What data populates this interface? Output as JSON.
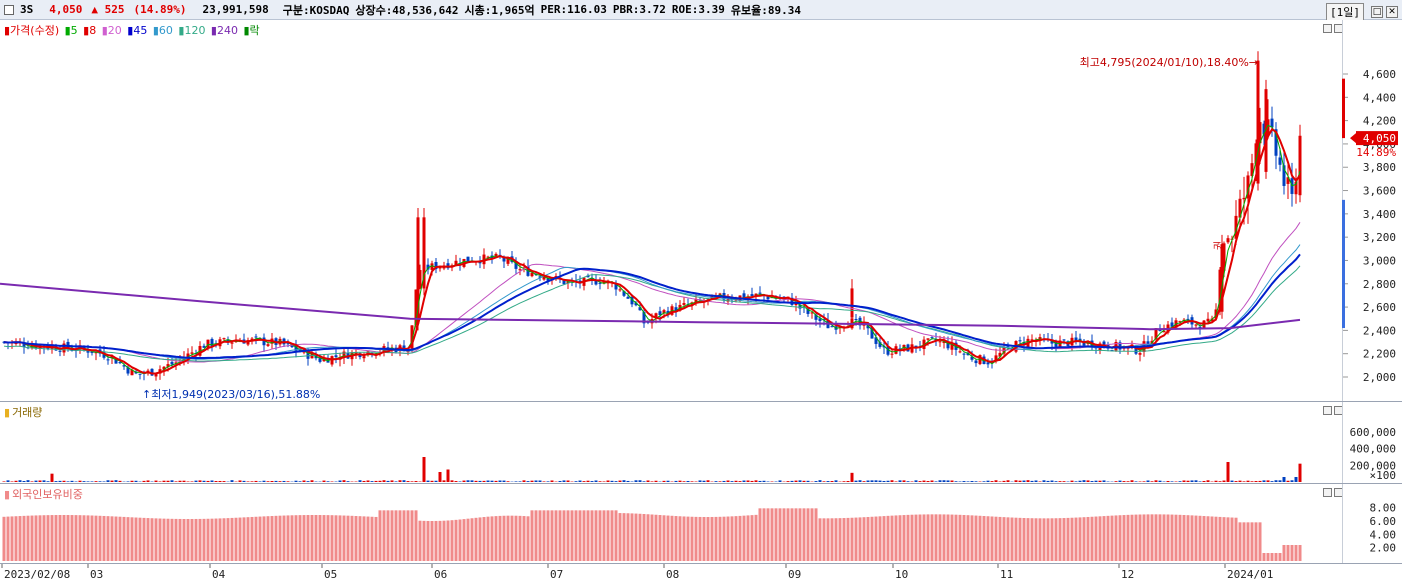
{
  "header": {
    "symbol": "3S",
    "price": "4,050",
    "change": "▲ 525",
    "change_pct": "(14.89%)",
    "volume": "23,991,598",
    "market": "구분:KOSDAQ",
    "shares": "상장수:48,536,642",
    "market_cap": "시총:1,965억",
    "per": "PER:116.03",
    "pbr": "PBR:3.72",
    "roe": "ROE:3.39",
    "float": "유보율:89.34",
    "period": "[1일]"
  },
  "price_panel": {
    "legend": [
      {
        "text": "가격(수정)",
        "color": "#e00000"
      },
      {
        "text": "5",
        "color": "#00aa00"
      },
      {
        "text": "8",
        "color": "#e00000"
      },
      {
        "text": "20",
        "color": "#d060d0"
      },
      {
        "text": "45",
        "color": "#0000cc"
      },
      {
        "text": "60",
        "color": "#3399cc"
      },
      {
        "text": "120",
        "color": "#33aa88"
      },
      {
        "text": "240",
        "color": "#7a2ab0"
      },
      {
        "text": "락",
        "color": "#008800"
      }
    ],
    "high_annotation": "최고4,795(2024/01/10),18.40%",
    "low_annotation": "최저1,949(2023/03/16),51.88%",
    "side_tag": "4,050",
    "side_pct": "14.89%",
    "lock_mark": "권",
    "y_ticks": [
      "4,600",
      "4,400",
      "4,200",
      "4,000",
      "3,800",
      "3,600",
      "3,400",
      "3,200",
      "3,000",
      "2,800",
      "2,600",
      "2,400",
      "2,200",
      "2,000"
    ]
  },
  "volume_panel": {
    "legend": "거래량",
    "y_ticks": [
      "600,000",
      "400,000",
      "200,000"
    ],
    "unit": "×100"
  },
  "foreign_panel": {
    "legend": "외국인보유비중",
    "y_ticks": [
      "8.00",
      "6.00",
      "4.00",
      "2.00"
    ]
  },
  "x_axis": {
    "labels": [
      "2023/02/08",
      "03",
      "04",
      "05",
      "06",
      "07",
      "08",
      "09",
      "10",
      "11",
      "12",
      "2024/01"
    ]
  },
  "colors": {
    "up": "#e00000",
    "down": "#0040c0",
    "ma5": "#00aa00",
    "ma8": "#e00000",
    "ma20": "#c050c0",
    "ma45": "#0020cc",
    "ma60": "#3399cc",
    "ma120": "#33aa88",
    "ma240": "#7a2ab0",
    "foreign": "#f08a8a"
  },
  "chart_data": {
    "type": "candlestick",
    "title": "3S",
    "period": "daily",
    "date_range": [
      "2023/02/08",
      "2024/01"
    ],
    "price_ylim": [
      1900,
      4800
    ],
    "high": {
      "value": 4795,
      "date": "2024/01/10"
    },
    "low": {
      "value": 1949,
      "date": "2023/03/16"
    },
    "close_path": [
      [
        "2023/02/08",
        2300
      ],
      [
        "2023/03",
        2200
      ],
      [
        "2023/03/16",
        2000
      ],
      [
        "2023/04",
        2250
      ],
      [
        "2023/05",
        2200
      ],
      [
        "2023/05/end",
        2250
      ],
      [
        "2023/06",
        2950
      ],
      [
        "2023/06/mid",
        3050
      ],
      [
        "2023/07",
        2800
      ],
      [
        "2023/07/mid",
        2850
      ],
      [
        "2023/08",
        2500
      ],
      [
        "2023/08/mid",
        2650
      ],
      [
        "2023/09",
        2650
      ],
      [
        "2023/09/mid",
        2450
      ],
      [
        "2023/10",
        2150
      ],
      [
        "2023/10/mid",
        2300
      ],
      [
        "2023/11",
        2100
      ],
      [
        "2023/11/mid",
        2350
      ],
      [
        "2023/12",
        2250
      ],
      [
        "2023/12/mid",
        2450
      ],
      [
        "2024/01",
        3200
      ],
      [
        "2024/01/10",
        4200
      ],
      [
        "2024/01/end",
        3525
      ],
      [
        "last",
        4050
      ]
    ],
    "volume_ylim": [
      0,
      800000
    ],
    "foreign_ratio_ylim": [
      0,
      10
    ]
  }
}
